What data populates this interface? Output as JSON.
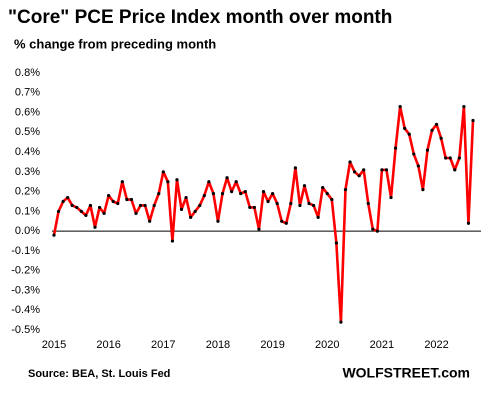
{
  "chart_data": {
    "type": "line",
    "title": "\"Core\" PCE Price Index month over month",
    "subtitle": "% change from preceding month",
    "source": "Source: BEA, St. Louis Fed",
    "brand": "WOLFSTREET.com",
    "categories": [
      "2015",
      null,
      null,
      null,
      null,
      null,
      null,
      null,
      null,
      null,
      null,
      null,
      "2016",
      null,
      null,
      null,
      null,
      null,
      null,
      null,
      null,
      null,
      null,
      null,
      "2017",
      null,
      null,
      null,
      null,
      null,
      null,
      null,
      null,
      null,
      null,
      null,
      "2018",
      null,
      null,
      null,
      null,
      null,
      null,
      null,
      null,
      null,
      null,
      null,
      "2019",
      null,
      null,
      null,
      null,
      null,
      null,
      null,
      null,
      null,
      null,
      null,
      "2020",
      null,
      null,
      null,
      null,
      null,
      null,
      null,
      null,
      null,
      null,
      null,
      "2021",
      null,
      null,
      null,
      null,
      null,
      null,
      null,
      null,
      null,
      null,
      null,
      "2022",
      null,
      null,
      null,
      null,
      null,
      null,
      null,
      null
    ],
    "series": [
      {
        "color": "#ff0000",
        "marker_color": "#000000",
        "values": [
          -0.02,
          0.1,
          0.15,
          0.17,
          0.13,
          0.12,
          0.1,
          0.08,
          0.13,
          0.02,
          0.12,
          0.09,
          0.18,
          0.15,
          0.14,
          0.25,
          0.16,
          0.16,
          0.09,
          0.13,
          0.13,
          0.05,
          0.13,
          0.19,
          0.3,
          0.25,
          -0.05,
          0.26,
          0.11,
          0.17,
          0.07,
          0.1,
          0.13,
          0.18,
          0.25,
          0.19,
          0.05,
          0.19,
          0.27,
          0.2,
          0.25,
          0.19,
          0.2,
          0.12,
          0.12,
          0.01,
          0.2,
          0.15,
          0.19,
          0.14,
          0.05,
          0.04,
          0.14,
          0.32,
          0.13,
          0.23,
          0.14,
          0.13,
          0.07,
          0.22,
          0.19,
          0.16,
          -0.06,
          -0.46,
          0.21,
          0.35,
          0.3,
          0.28,
          0.31,
          0.14,
          0.01,
          0.0,
          0.31,
          0.31,
          0.17,
          0.42,
          0.63,
          0.52,
          0.49,
          0.39,
          0.33,
          0.21,
          0.41,
          0.51,
          0.54,
          0.47,
          0.37,
          0.37,
          0.31,
          0.37,
          0.63,
          0.04,
          0.56
        ]
      }
    ],
    "ylim": [
      -0.5,
      0.8
    ],
    "yticks": [
      {
        "value": -0.5,
        "label": "-0.5%"
      },
      {
        "value": -0.4,
        "label": "-0.4%"
      },
      {
        "value": -0.3,
        "label": "-0.3%"
      },
      {
        "value": -0.2,
        "label": "-0.2%"
      },
      {
        "value": -0.1,
        "label": "-0.1%"
      },
      {
        "value": 0,
        "label": "0.0%"
      },
      {
        "value": 0.1,
        "label": "0.1%"
      },
      {
        "value": 0.2,
        "label": "0.2%"
      },
      {
        "value": 0.3,
        "label": "0.3%"
      },
      {
        "value": 0.4,
        "label": "0.4%"
      },
      {
        "value": 0.5,
        "label": "0.5%"
      },
      {
        "value": 0.6,
        "label": "0.6%"
      },
      {
        "value": 0.7,
        "label": "0.7%"
      },
      {
        "value": 0.8,
        "label": "0.8%"
      }
    ],
    "zero_line": true,
    "grid": false
  }
}
